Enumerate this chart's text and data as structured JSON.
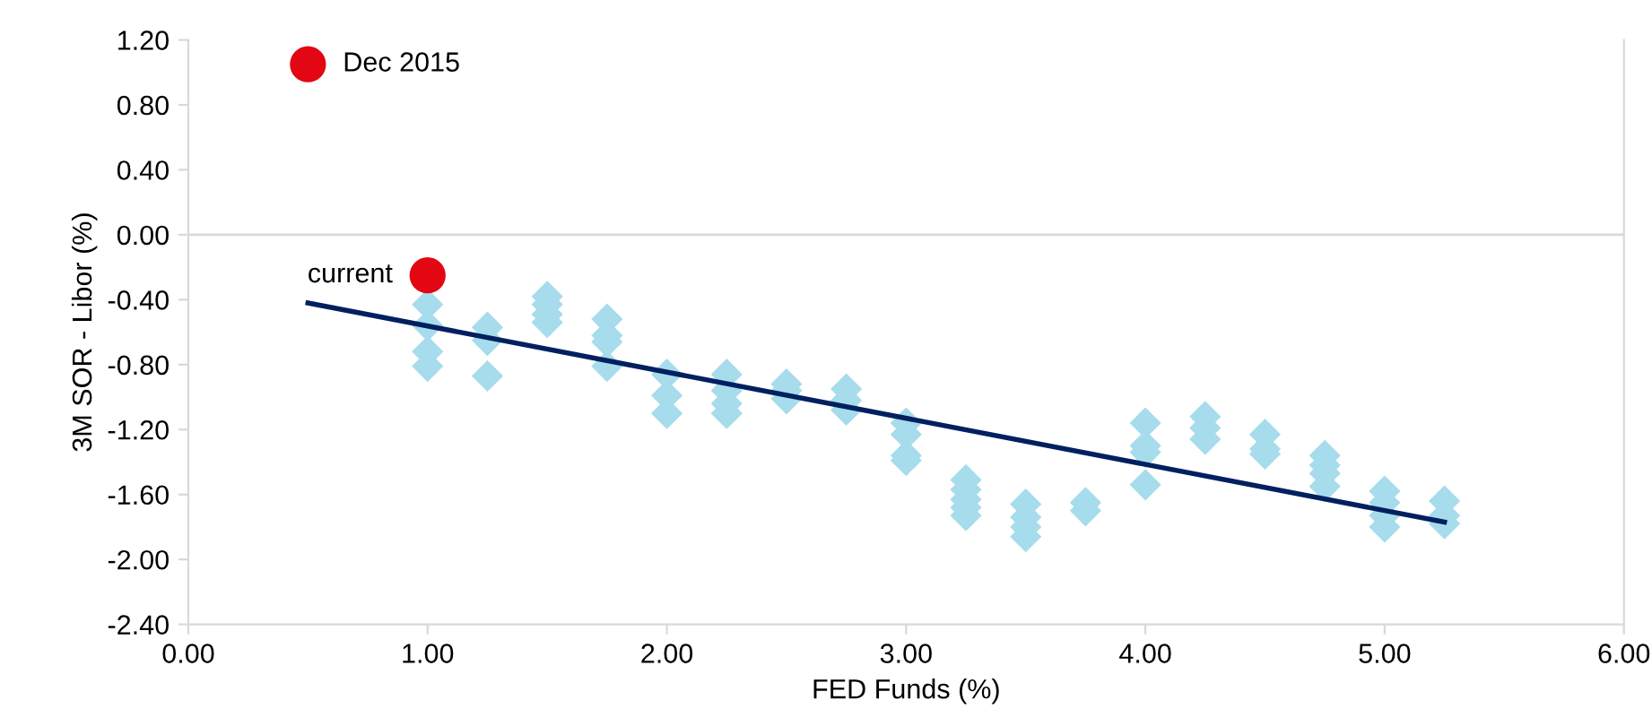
{
  "chart_data": {
    "type": "scatter",
    "xlabel": "FED Funds (%)",
    "ylabel": "3M SOR - Libor (%)",
    "xlim": [
      0,
      6
    ],
    "xticks": [
      {
        "value": 0,
        "label": "0.00"
      },
      {
        "value": 1,
        "label": "1.00"
      },
      {
        "value": 2,
        "label": "2.00"
      },
      {
        "value": 3,
        "label": "3.00"
      },
      {
        "value": 4,
        "label": "4.00"
      },
      {
        "value": 5,
        "label": "5.00"
      },
      {
        "value": 6,
        "label": "6.00"
      }
    ],
    "ylim": [
      -2.4,
      1.2
    ],
    "yticks": [
      {
        "value": -2.4,
        "label": "-2.40"
      },
      {
        "value": -2.0,
        "label": "-2.00"
      },
      {
        "value": -1.6,
        "label": "-1.60"
      },
      {
        "value": -1.2,
        "label": "-1.20"
      },
      {
        "value": -0.8,
        "label": "-0.80"
      },
      {
        "value": -0.4,
        "label": "-0.40"
      },
      {
        "value": 0,
        "label": "0.00"
      },
      {
        "value": 0.4,
        "label": "0.40"
      },
      {
        "value": 0.8,
        "label": "0.80"
      },
      {
        "value": 1.2,
        "label": "1.20"
      }
    ],
    "grid": false,
    "legend": false,
    "ref_lines": [
      {
        "axis": "y",
        "value": 0,
        "color": "#d9d9d9"
      }
    ],
    "series": [
      {
        "marker": "diamond",
        "color": "#a6dcec",
        "x": [
          1,
          1,
          1,
          1,
          1.25,
          1.25,
          1.25,
          1.5,
          1.5,
          1.5,
          1.5,
          1.75,
          1.75,
          1.75,
          1.75,
          2,
          2,
          2,
          2.25,
          2.25,
          2.25,
          2.25,
          2.5,
          2.5,
          2.5,
          2.75,
          2.75,
          2.75,
          3,
          3,
          3,
          3,
          3.25,
          3.25,
          3.25,
          3.25,
          3.25,
          3.5,
          3.5,
          3.5,
          3.5,
          3.75,
          3.75,
          4,
          4,
          4,
          4,
          4.25,
          4.25,
          4.25,
          4.5,
          4.5,
          4.5,
          4.75,
          4.75,
          4.75,
          4.75,
          5,
          5,
          5,
          5,
          5.25,
          5.25,
          5.25
        ],
        "values": [
          -0.43,
          -0.56,
          -0.72,
          -0.81,
          -0.57,
          -0.65,
          -0.87,
          -0.38,
          -0.43,
          -0.49,
          -0.54,
          -0.52,
          -0.62,
          -0.66,
          -0.81,
          -0.86,
          -0.99,
          -1.1,
          -0.86,
          -0.96,
          -1.04,
          -1.1,
          -0.92,
          -0.96,
          -1.01,
          -0.95,
          -1.02,
          -1.08,
          -1.16,
          -1.23,
          -1.36,
          -1.39,
          -1.51,
          -1.57,
          -1.63,
          -1.68,
          -1.73,
          -1.66,
          -1.74,
          -1.8,
          -1.86,
          -1.65,
          -1.7,
          -1.16,
          -1.3,
          -1.34,
          -1.54,
          -1.12,
          -1.19,
          -1.26,
          -1.23,
          -1.32,
          -1.35,
          -1.36,
          -1.42,
          -1.47,
          -1.55,
          -1.58,
          -1.65,
          -1.73,
          -1.8,
          -1.64,
          -1.73,
          -1.78
        ]
      },
      {
        "type": "line",
        "marker": "none",
        "color": "#002060",
        "x": [
          0.5,
          5.25
        ],
        "values": [
          -0.42,
          -1.77
        ]
      },
      {
        "marker": "circle",
        "color": "#e30613",
        "x": [
          1.0,
          0.5
        ],
        "values": [
          -0.25,
          1.05
        ]
      }
    ],
    "annotations": [
      {
        "text": "current",
        "x": 1.0,
        "y": -0.25
      },
      {
        "text": "Dec 2015",
        "x": 0.5,
        "y": 1.05
      }
    ]
  }
}
